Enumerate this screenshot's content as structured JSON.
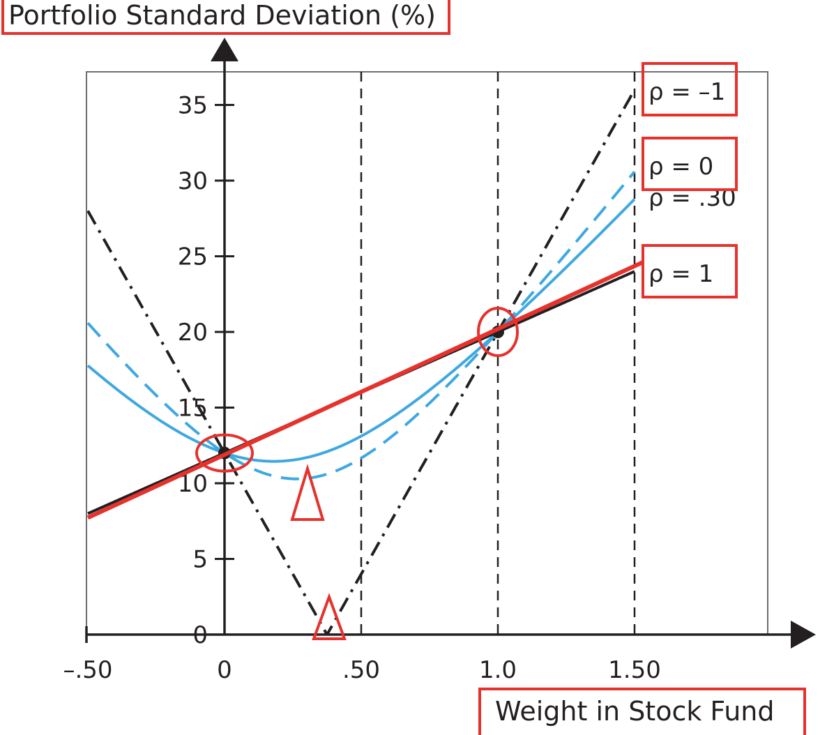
{
  "chart_data": {
    "type": "line",
    "ylabel": "Portfolio Standard Deviation (%)",
    "xlabel": "Weight in Stock Fund",
    "xlim": [
      -0.5,
      2.0
    ],
    "ylim": [
      0,
      37
    ],
    "x_ticks": [
      "–.50",
      "0",
      ".50",
      "1.0",
      "1.50"
    ],
    "x_tick_values": [
      -0.5,
      0,
      0.5,
      1.0,
      1.5
    ],
    "y_ticks": [
      "0",
      "5",
      "10",
      "15",
      "20",
      "25",
      "30",
      "35"
    ],
    "y_tick_values": [
      0,
      5,
      10,
      15,
      20,
      25,
      30,
      35
    ],
    "reference_lines_x": [
      0.5,
      1.0,
      1.5
    ],
    "asset_points": [
      {
        "x": 0,
        "y": 12
      },
      {
        "x": 1,
        "y": 20
      }
    ],
    "series": [
      {
        "name": "ρ = –1",
        "rho": -1,
        "style": "dashdot",
        "color": "#231f20"
      },
      {
        "name": "ρ = 0",
        "rho": 0,
        "style": "dashed",
        "color": "#3fa8e0"
      },
      {
        "name": "ρ = .30",
        "rho": 0.3,
        "style": "solid",
        "color": "#3fa8e0"
      },
      {
        "name": "ρ = 1",
        "rho": 1,
        "style": "solid",
        "color": "#231f20"
      }
    ],
    "highlight_color": "#e5322d"
  }
}
